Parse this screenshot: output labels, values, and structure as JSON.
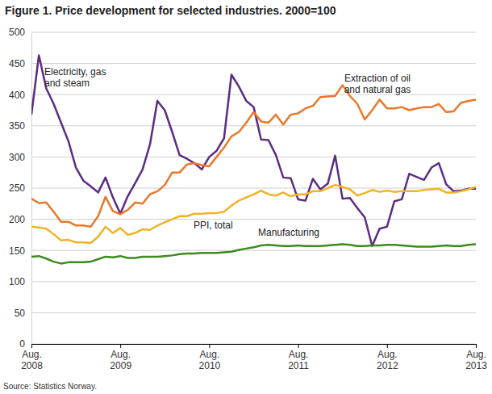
{
  "chart_data": {
    "type": "line",
    "title": "Figure 1. Price development for selected industries. 2000=100",
    "source": "Source: Statistics Norway.",
    "categories": [
      "Aug. 2008",
      null,
      null,
      null,
      null,
      null,
      null,
      null,
      null,
      null,
      null,
      null,
      "Aug. 2009",
      null,
      null,
      null,
      null,
      null,
      null,
      null,
      null,
      null,
      null,
      null,
      "Aug. 2010",
      null,
      null,
      null,
      null,
      null,
      null,
      null,
      null,
      null,
      null,
      null,
      "Aug. 2011",
      null,
      null,
      null,
      null,
      null,
      null,
      null,
      null,
      null,
      null,
      null,
      "Aug. 2012",
      null,
      null,
      null,
      null,
      null,
      null,
      null,
      null,
      null,
      null,
      null,
      "Aug. 2013"
    ],
    "ylim": [
      0,
      500
    ],
    "yticks": [
      0,
      50,
      100,
      150,
      200,
      250,
      300,
      350,
      400,
      450,
      500
    ],
    "grid": true,
    "series": [
      {
        "name": "Electricity, gas and steam",
        "color": "#5b2c83",
        "values": [
          368,
          463,
          410,
          385,
          355,
          325,
          283,
          262,
          253,
          243,
          267,
          235,
          209,
          237,
          258,
          280,
          320,
          390,
          375,
          340,
          303,
          297,
          290,
          280,
          300,
          310,
          330,
          432,
          413,
          390,
          380,
          328,
          327,
          303,
          267,
          266,
          232,
          230,
          265,
          248,
          257,
          302,
          233,
          234,
          218,
          203,
          157,
          185,
          188,
          229,
          232,
          273,
          268,
          263,
          283,
          290,
          256,
          245,
          246,
          249,
          249
        ]
      },
      {
        "name": "Extraction of oil and natural gas",
        "color": "#e8782a",
        "values": [
          233,
          226,
          227,
          212,
          196,
          196,
          190,
          190,
          188,
          205,
          236,
          213,
          208,
          215,
          227,
          225,
          240,
          245,
          255,
          275,
          275,
          288,
          290,
          287,
          285,
          300,
          315,
          333,
          340,
          355,
          372,
          357,
          355,
          368,
          352,
          368,
          370,
          378,
          382,
          396,
          397,
          398,
          415,
          398,
          385,
          360,
          375,
          392,
          378,
          378,
          380,
          375,
          378,
          380,
          380,
          385,
          372,
          373,
          387,
          390,
          392
        ]
      },
      {
        "name": "PPI, total",
        "color": "#f0b323",
        "values": [
          188,
          187,
          185,
          176,
          166,
          167,
          163,
          163,
          162,
          172,
          188,
          178,
          186,
          175,
          178,
          184,
          183,
          190,
          195,
          200,
          205,
          205,
          209,
          209,
          210,
          210,
          212,
          222,
          230,
          235,
          240,
          246,
          240,
          238,
          243,
          237,
          240,
          240,
          245,
          245,
          250,
          255,
          252,
          248,
          238,
          242,
          247,
          244,
          246,
          244,
          245,
          245,
          245,
          247,
          248,
          249,
          243,
          243,
          245,
          248,
          252
        ]
      },
      {
        "name": "Manufacturing",
        "color": "#3d8a1e",
        "values": [
          140,
          141,
          137,
          132,
          129,
          131,
          131,
          131,
          132,
          136,
          140,
          139,
          141,
          138,
          138,
          140,
          140,
          140,
          141,
          142,
          144,
          145,
          145,
          146,
          146,
          146,
          147,
          148,
          151,
          153,
          155,
          158,
          159,
          158,
          157,
          157,
          158,
          157,
          157,
          157,
          158,
          159,
          160,
          159,
          157,
          157,
          158,
          158,
          159,
          159,
          158,
          157,
          156,
          156,
          156,
          157,
          158,
          157,
          157,
          159,
          160
        ]
      }
    ]
  }
}
